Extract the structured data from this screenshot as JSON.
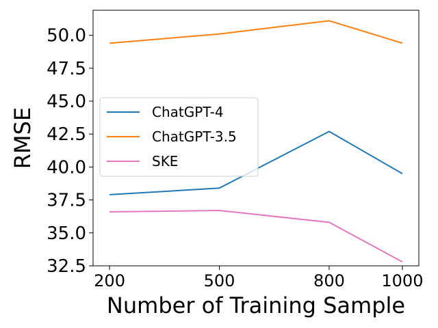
{
  "chart_data": {
    "type": "line",
    "x": [
      200,
      500,
      800,
      1000
    ],
    "x_tick_labels": [
      "200",
      "500",
      "800",
      "1000"
    ],
    "xlabel": "Number of Training Sample",
    "ylabel": "RMSE",
    "ylim": [
      32.5,
      51.9
    ],
    "xlim": [
      155,
      1045
    ],
    "y_ticks": [
      32.5,
      35.0,
      37.5,
      40.0,
      42.5,
      45.0,
      47.5,
      50.0
    ],
    "y_tick_labels": [
      "32.5",
      "35.0",
      "37.5",
      "40.0",
      "42.5",
      "45.0",
      "47.5",
      "50.0"
    ],
    "grid": false,
    "legend_position": "center-left",
    "series": [
      {
        "name": "ChatGPT-4",
        "values": [
          37.9,
          38.4,
          42.7,
          39.5
        ],
        "color": "#1f77b4"
      },
      {
        "name": "ChatGPT-3.5",
        "values": [
          49.4,
          50.1,
          51.1,
          49.4
        ],
        "color": "#ff7f0e"
      },
      {
        "name": "SKE",
        "values": [
          36.6,
          36.7,
          35.8,
          32.8
        ],
        "color": "#e377c2"
      }
    ]
  }
}
